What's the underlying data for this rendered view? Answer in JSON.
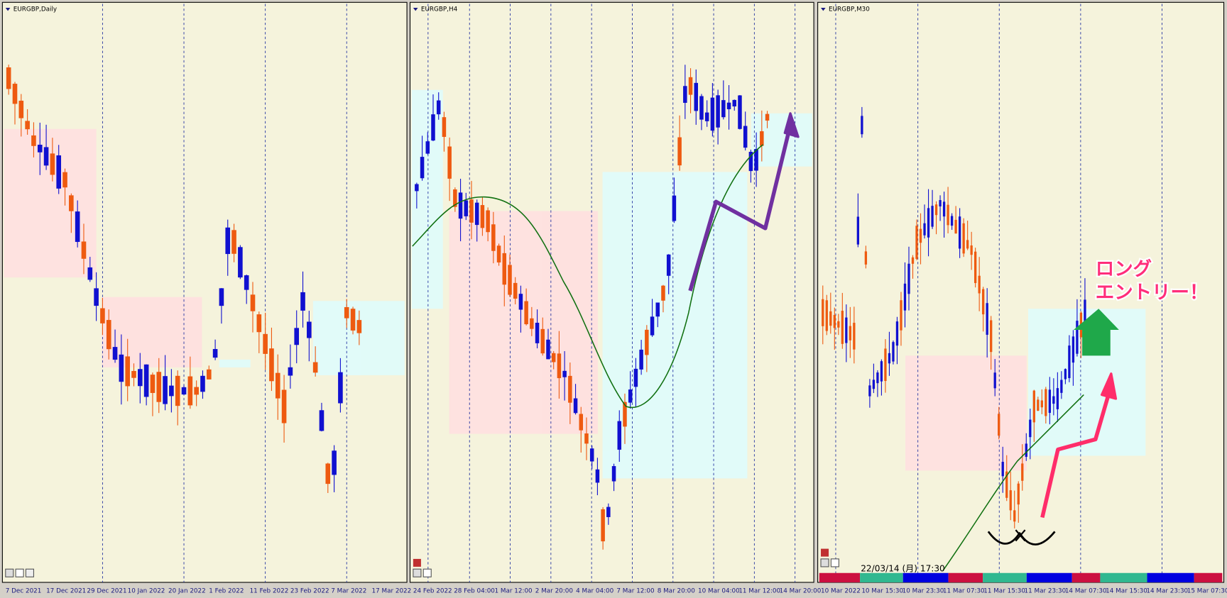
{
  "panels": [
    {
      "title": "EURGBP,Daily",
      "dates": [
        "7 Dec 2021",
        "17 Dec 2021",
        "29 Dec 2021",
        "10 Jan 2022",
        "20 Jan 2022",
        "1 Feb 2022",
        "11 Feb 2022",
        "23 Feb 2022",
        "7 Mar 2022",
        "17 Mar 2022"
      ]
    },
    {
      "title": "EURGBP,H4",
      "dates": [
        "24 Feb 2022",
        "28 Feb 04:00",
        "1 Mar 12:00",
        "2 Mar 20:00",
        "4 Mar 04:00",
        "7 Mar 12:00",
        "8 Mar 20:00",
        "10 Mar 04:00",
        "11 Mar 12:00",
        "14 Mar 20:00"
      ]
    },
    {
      "title": "EURGBP,M30",
      "dates": [
        "10 Mar 2022",
        "10 Mar 15:30",
        "10 Mar 23:30",
        "11 Mar 07:30",
        "11 Mar 15:30",
        "11 Mar 23:30",
        "14 Mar 07:30",
        "14 Mar 15:30",
        "14 Mar 23:30",
        "15 Mar 07:30"
      ],
      "time": "22/03/14 (月) 17:30"
    }
  ],
  "annotation": {
    "line1": "ロング",
    "line2": "エントリー！"
  }
}
